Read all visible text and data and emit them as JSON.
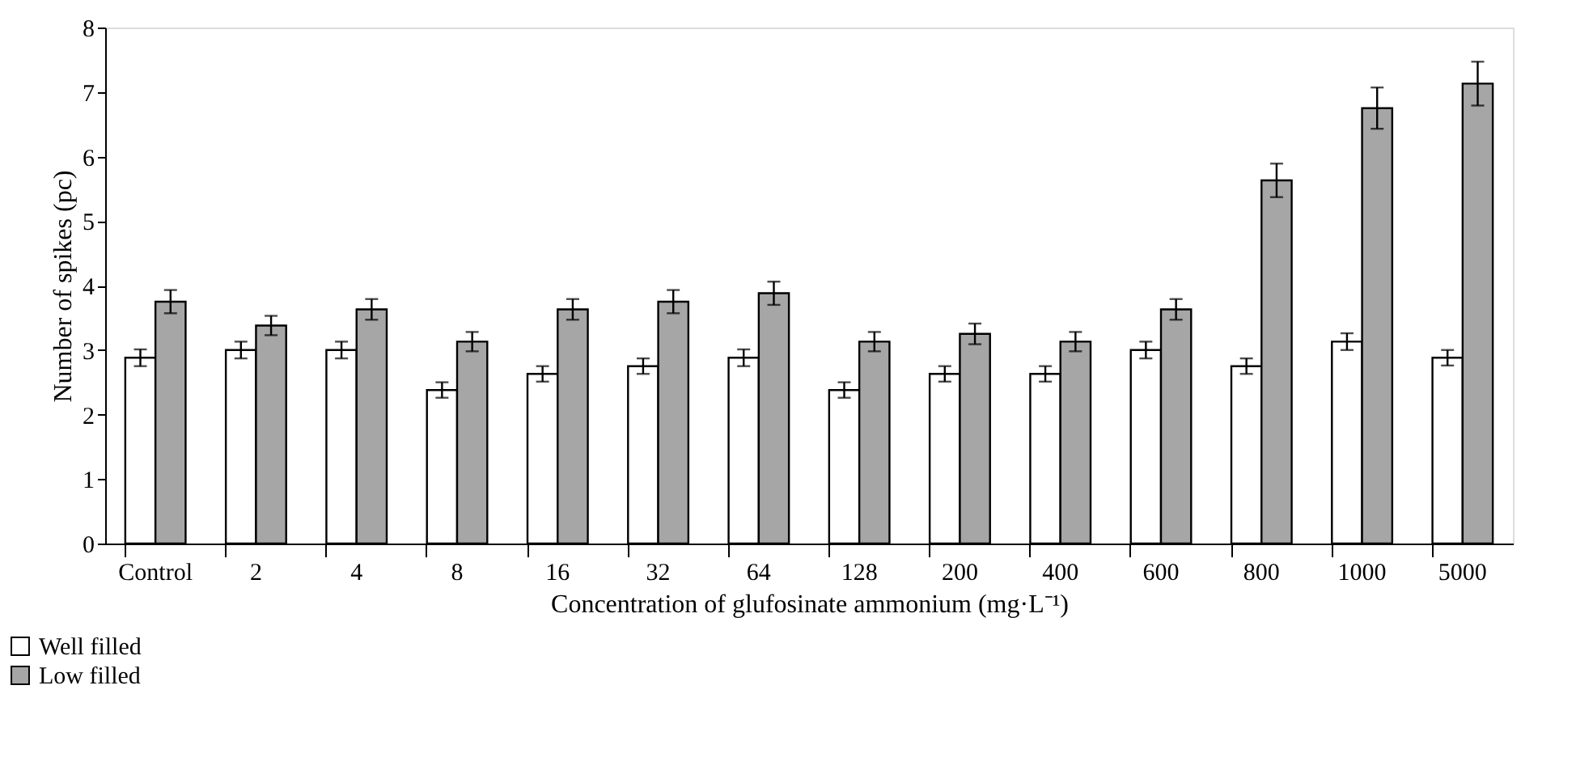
{
  "chart_data": {
    "type": "bar",
    "xlabel": "Concentration of glufosinate ammonium (mg·L⁻¹)",
    "ylabel": "Number of spikes (pc)",
    "categories": [
      "Control",
      "2",
      "4",
      "8",
      "16",
      "32",
      "64",
      "128",
      "200",
      "400",
      "600",
      "800",
      "1000",
      "5000"
    ],
    "series": [
      {
        "name": "Well filled",
        "color": "#ffffff",
        "values": [
          2.88,
          3.0,
          3.0,
          2.38,
          2.63,
          2.75,
          2.88,
          2.38,
          2.63,
          2.63,
          3.0,
          2.75,
          3.13,
          2.88
        ],
        "errors": [
          0.13,
          0.13,
          0.13,
          0.12,
          0.12,
          0.12,
          0.13,
          0.12,
          0.12,
          0.12,
          0.13,
          0.12,
          0.13,
          0.12
        ]
      },
      {
        "name": "Low filled",
        "color": "#a6a6a6",
        "values": [
          3.75,
          3.38,
          3.63,
          3.13,
          3.63,
          3.75,
          3.88,
          3.13,
          3.25,
          3.13,
          3.63,
          5.63,
          6.75,
          7.13
        ],
        "errors": [
          0.18,
          0.15,
          0.16,
          0.15,
          0.16,
          0.18,
          0.18,
          0.15,
          0.16,
          0.15,
          0.16,
          0.26,
          0.32,
          0.34
        ]
      }
    ],
    "ylim": [
      0,
      8
    ],
    "yticks": [
      0,
      1,
      2,
      3,
      4,
      5,
      6,
      7,
      8
    ],
    "grid": false,
    "legend": "bottom left"
  }
}
